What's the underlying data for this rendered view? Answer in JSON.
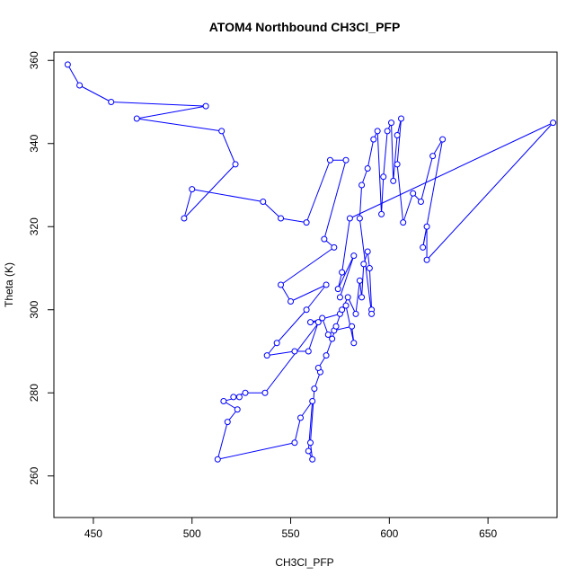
{
  "chart_data": {
    "type": "scatter",
    "title": "ATOM4 Northbound CH3Cl_PFP",
    "xlabel": "CH3Cl_PFP",
    "ylabel": "Theta (K)",
    "xlim": [
      430,
      685
    ],
    "ylim": [
      250,
      362
    ],
    "xticks": [
      450,
      500,
      550,
      600,
      650
    ],
    "yticks": [
      260,
      280,
      300,
      320,
      340,
      360
    ],
    "grid": false,
    "legend": "none",
    "series_color": "#0000ff",
    "markers": "open-circle",
    "connected": true,
    "points": [
      [
        437,
        359
      ],
      [
        443,
        354
      ],
      [
        459,
        350
      ],
      [
        507,
        349
      ],
      [
        472,
        346
      ],
      [
        515,
        343
      ],
      [
        522,
        335
      ],
      [
        496,
        322
      ],
      [
        500,
        329
      ],
      [
        536,
        326
      ],
      [
        545,
        322
      ],
      [
        558,
        321
      ],
      [
        570,
        336
      ],
      [
        578,
        336
      ],
      [
        567,
        317
      ],
      [
        572,
        315
      ],
      [
        545,
        306
      ],
      [
        550,
        302
      ],
      [
        568,
        306
      ],
      [
        558,
        300
      ],
      [
        543,
        292
      ],
      [
        538,
        289
      ],
      [
        552,
        290
      ],
      [
        559,
        290
      ],
      [
        564,
        297
      ],
      [
        560,
        297
      ],
      [
        575,
        299
      ],
      [
        578,
        301
      ],
      [
        582,
        292
      ],
      [
        581,
        296
      ],
      [
        572,
        295
      ],
      [
        569,
        294
      ],
      [
        566,
        298
      ],
      [
        537,
        280
      ],
      [
        527,
        280
      ],
      [
        521,
        279
      ],
      [
        524,
        279
      ],
      [
        516,
        278
      ],
      [
        523,
        276
      ],
      [
        518,
        273
      ],
      [
        513,
        264
      ],
      [
        552,
        268
      ],
      [
        555,
        274
      ],
      [
        561,
        278
      ],
      [
        559,
        266
      ],
      [
        561,
        264
      ],
      [
        560,
        268
      ],
      [
        562,
        281
      ],
      [
        565,
        285
      ],
      [
        564,
        286
      ],
      [
        568,
        289
      ],
      [
        571,
        293
      ],
      [
        573,
        296
      ],
      [
        576,
        300
      ],
      [
        579,
        303
      ],
      [
        583,
        299
      ],
      [
        585,
        307
      ],
      [
        586,
        303
      ],
      [
        587,
        311
      ],
      [
        589,
        314
      ],
      [
        590,
        310
      ],
      [
        591,
        300
      ],
      [
        591,
        299
      ],
      [
        585,
        322
      ],
      [
        586,
        330
      ],
      [
        589,
        334
      ],
      [
        592,
        341
      ],
      [
        594,
        343
      ],
      [
        596,
        323
      ],
      [
        597,
        332
      ],
      [
        599,
        343
      ],
      [
        601,
        345
      ],
      [
        602,
        331
      ],
      [
        604,
        342
      ],
      [
        606,
        346
      ],
      [
        604,
        335
      ],
      [
        607,
        321
      ],
      [
        612,
        328
      ],
      [
        616,
        326
      ],
      [
        622,
        337
      ],
      [
        627,
        341
      ],
      [
        617,
        315
      ],
      [
        619,
        320
      ],
      [
        619,
        312
      ],
      [
        683,
        345
      ],
      [
        580,
        322
      ],
      [
        576,
        309
      ],
      [
        574,
        305
      ],
      [
        582,
        313
      ],
      [
        575,
        303
      ]
    ]
  }
}
